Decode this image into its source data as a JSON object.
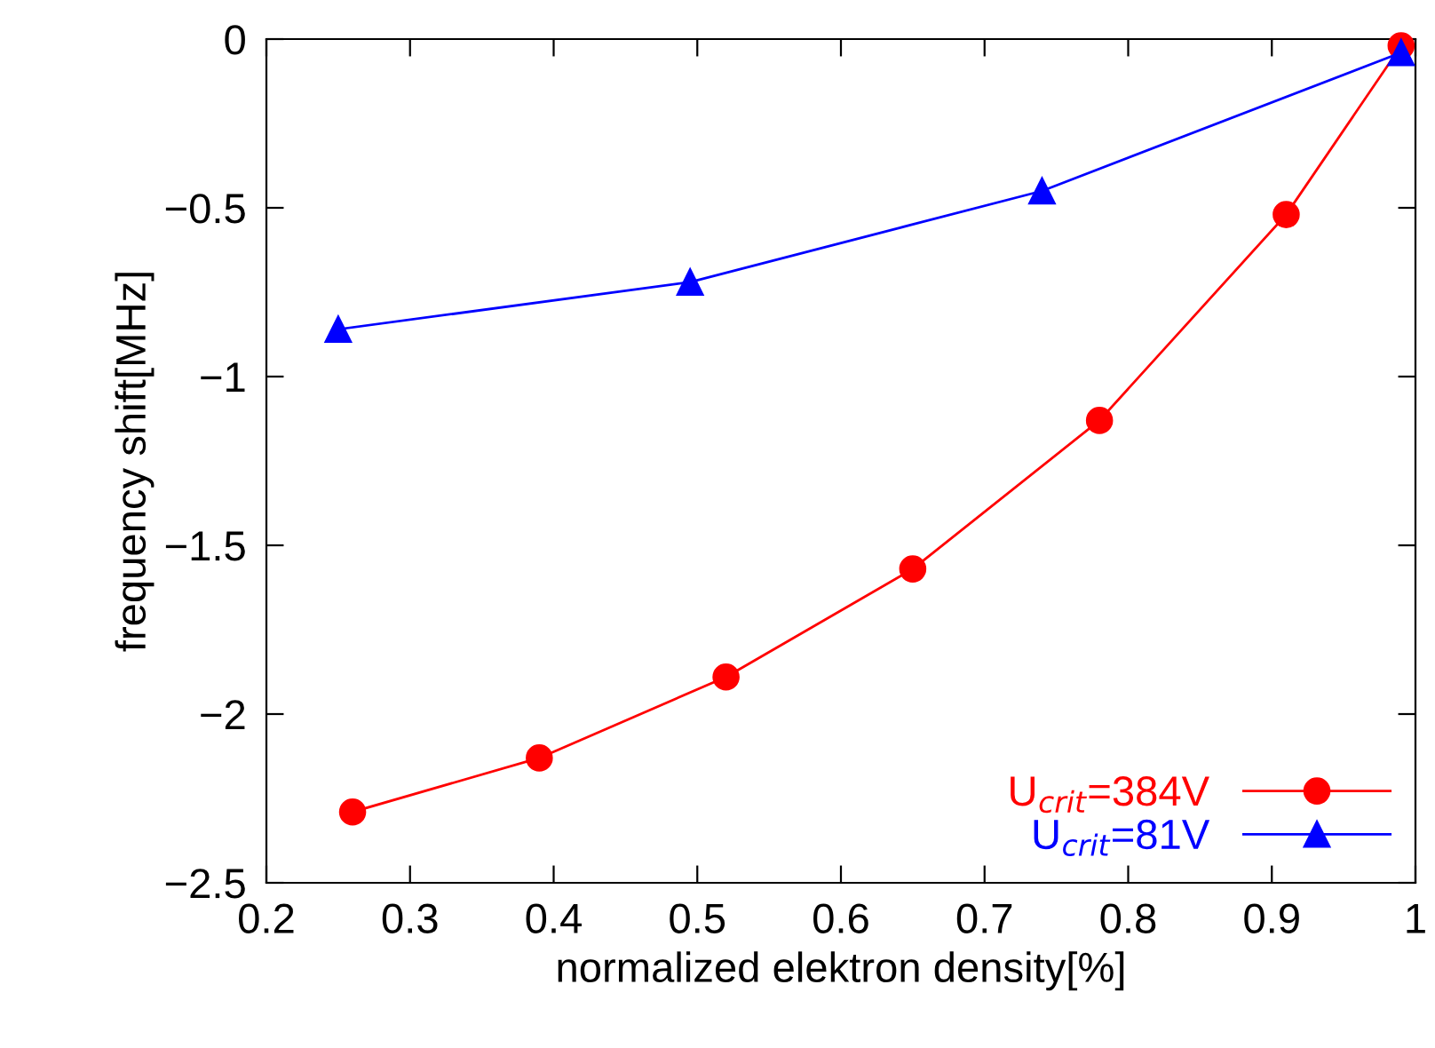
{
  "chart_data": {
    "type": "line",
    "xlabel": "normalized elektron density[%]",
    "ylabel": "frequency shift[MHz]",
    "xlim": [
      0.2,
      1
    ],
    "xticks": [
      0.2,
      0.3,
      0.4,
      0.5,
      0.6,
      0.7,
      0.8,
      0.9,
      {
        "value": 1,
        "label": "1"
      }
    ],
    "ylim": [
      -2.5,
      0
    ],
    "yticks": [
      {
        "value": -2.5,
        "label": "−2.5"
      },
      {
        "value": -2,
        "label": "−2"
      },
      {
        "value": -1.5,
        "label": "−1.5"
      },
      {
        "value": -1,
        "label": "−1"
      },
      {
        "value": -0.5,
        "label": "−0.5"
      },
      0
    ],
    "grid": false,
    "legend": "bottom right",
    "series": [
      {
        "name": "U$_{crit}$=384V",
        "color": "#ff0000",
        "marker": "circle",
        "x": [
          0.26,
          0.39,
          0.52,
          0.65,
          0.78,
          0.91,
          0.99
        ],
        "values": [
          -2.29,
          -2.13,
          -1.89,
          -1.57,
          -1.13,
          -0.52,
          -0.02
        ]
      },
      {
        "name": "U$_{crit}$=81V",
        "color": "#0000ff",
        "marker": "triangle",
        "x": [
          0.25,
          0.495,
          0.74,
          0.99
        ],
        "values": [
          -0.86,
          -0.72,
          -0.45,
          -0.04
        ]
      }
    ]
  }
}
